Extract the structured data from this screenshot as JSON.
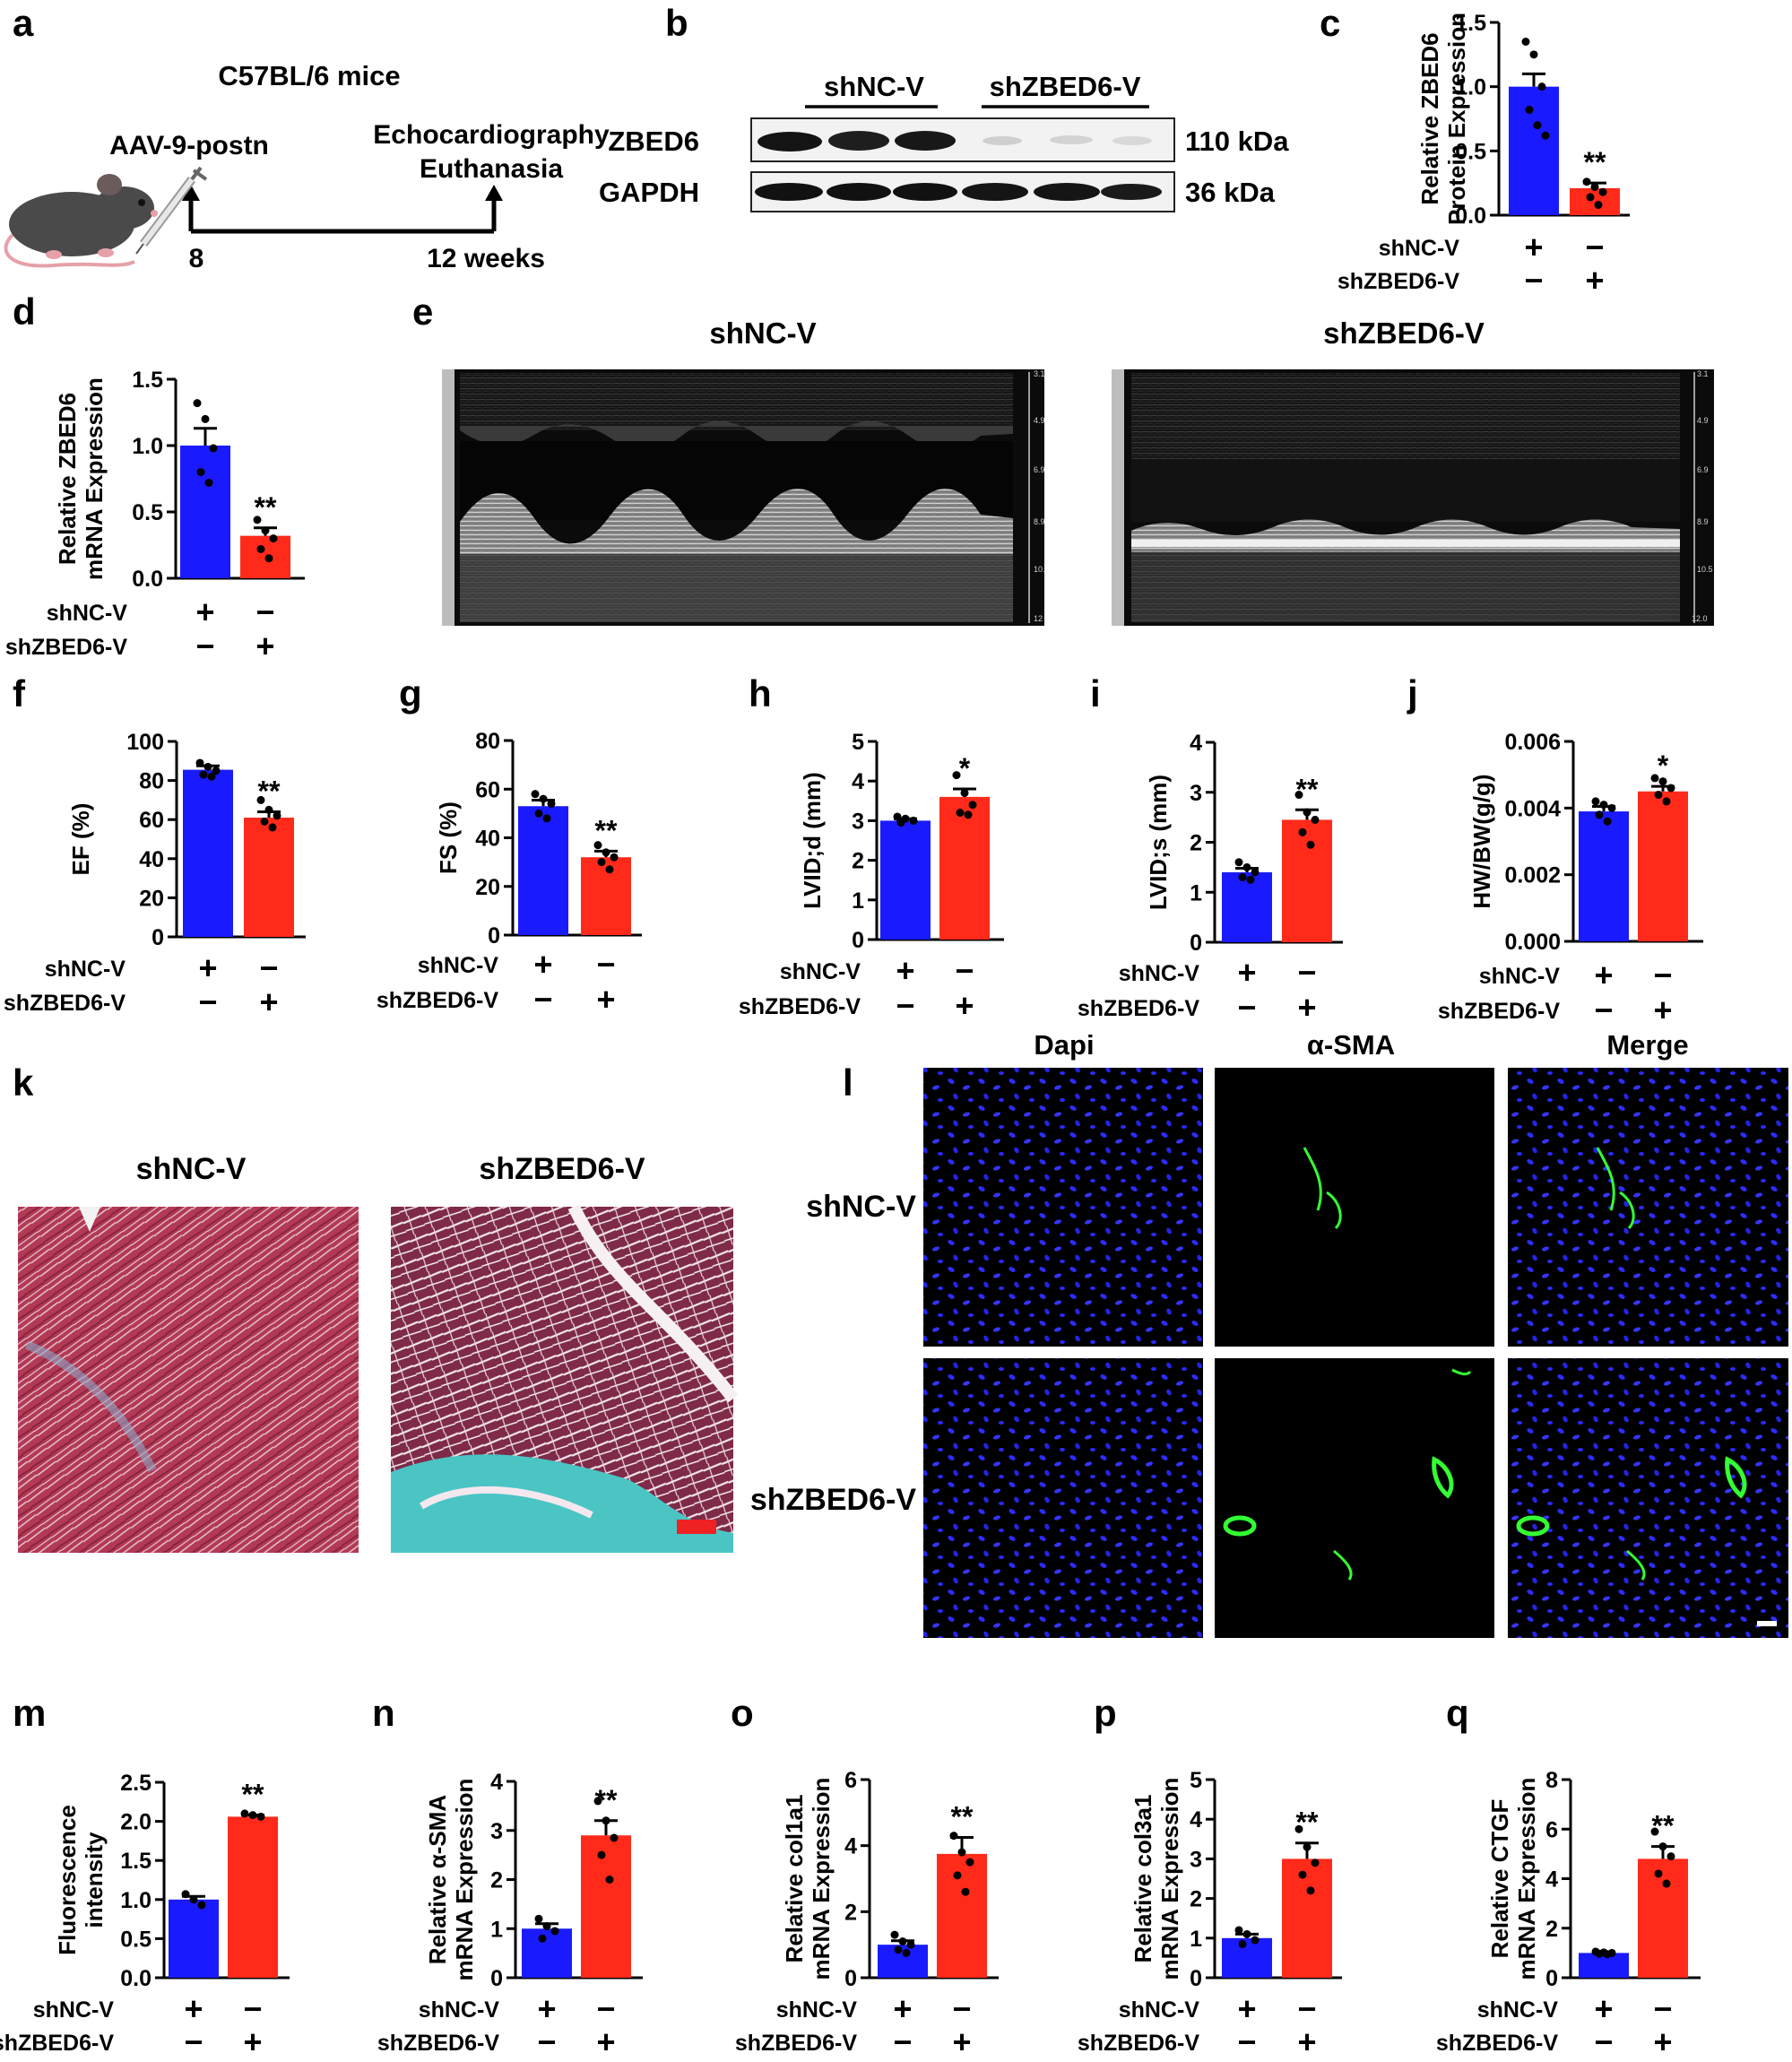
{
  "colors": {
    "control": "#1a1aff",
    "treated": "#ff2a1a",
    "fluor_green": "#33ff33",
    "fluor_blue": "#2222ff",
    "tissue_red": "#b0304a",
    "fibrosis_cyan": "#4bc4c4",
    "scale_red": "#ee2222"
  },
  "groups": {
    "row1": "shNC-V",
    "row2": "shZBED6-V",
    "plus": "+",
    "minus": "−"
  },
  "panels": {
    "a": {
      "letter": "a",
      "title": "C57BL/6 mice",
      "inject": "AAV-9-postn",
      "end_line1": "Echocardiography",
      "end_line2": "Euthanasia",
      "start_week": "8",
      "end_week": "12 weeks",
      "mouse_icon": "mouse-icon",
      "syringe_icon": "syringe-icon"
    },
    "b": {
      "letter": "b",
      "group1": "shNC-V",
      "group2": "shZBED6-V",
      "band1": "ZBED6",
      "band1_kda": "110 kDa",
      "band2": "GAPDH",
      "band2_kda": "36 kDa"
    },
    "e": {
      "letter": "e",
      "left": "shNC-V",
      "right": "shZBED6-V",
      "depth_ticks_left": [
        "3.1",
        "4.9",
        "6.9",
        "8.9",
        "10.",
        "12"
      ],
      "depth_ticks_right": [
        "3.1",
        "4.9",
        "6.9",
        "8.9",
        "10.5",
        "12.0"
      ]
    },
    "k": {
      "letter": "k",
      "left": "shNC-V",
      "right": "shZBED6-V"
    },
    "l": {
      "letter": "l",
      "col1": "Dapi",
      "col2": "α-SMA",
      "col3": "Merge",
      "row1": "shNC-V",
      "row2": "shZBED6-V"
    }
  },
  "chart_data": [
    {
      "id": "c",
      "letter": "c",
      "type": "bar",
      "categories": [
        "shNC-V",
        "shZBED6-V"
      ],
      "values": [
        1.0,
        0.21
      ],
      "errors": [
        0.1,
        0.04
      ],
      "points": [
        [
          1.35,
          1.25,
          1.0,
          0.82,
          0.7,
          0.62
        ],
        [
          0.26,
          0.22,
          0.18,
          0.14,
          0.08
        ]
      ],
      "ylabel": [
        "Relative ZBED6",
        "Protein Expression"
      ],
      "ylim": [
        0,
        1.5
      ],
      "yticks": [
        0,
        0.5,
        1.0,
        1.5
      ],
      "ytick_labels": [
        "0.0",
        "0.5",
        "1.0",
        "1.5"
      ],
      "sig": "**"
    },
    {
      "id": "d",
      "letter": "d",
      "type": "bar",
      "categories": [
        "shNC-V",
        "shZBED6-V"
      ],
      "values": [
        1.0,
        0.32
      ],
      "errors": [
        0.13,
        0.06
      ],
      "points": [
        [
          1.32,
          1.2,
          0.98,
          0.8,
          0.72
        ],
        [
          0.44,
          0.36,
          0.3,
          0.22,
          0.15
        ]
      ],
      "ylabel": [
        "Relative ZBED6",
        "mRNA Expression"
      ],
      "ylim": [
        0,
        1.5
      ],
      "yticks": [
        0,
        0.5,
        1.0,
        1.5
      ],
      "ytick_labels": [
        "0.0",
        "0.5",
        "1.0",
        "1.5"
      ],
      "sig": "**"
    },
    {
      "id": "f",
      "letter": "f",
      "type": "bar",
      "categories": [
        "shNC-V",
        "shZBED6-V"
      ],
      "values": [
        85.5,
        61
      ],
      "errors": [
        2,
        3
      ],
      "points": [
        [
          89,
          87,
          85,
          83,
          82
        ],
        [
          70,
          65,
          62,
          59,
          56
        ]
      ],
      "ylabel": [
        "EF (%)"
      ],
      "ylim": [
        0,
        100
      ],
      "yticks": [
        0,
        20,
        40,
        60,
        80,
        100
      ],
      "ytick_labels": [
        "0",
        "20",
        "40",
        "60",
        "80",
        "100"
      ],
      "sig": "**"
    },
    {
      "id": "g",
      "letter": "g",
      "type": "bar",
      "categories": [
        "shNC-V",
        "shZBED6-V"
      ],
      "values": [
        53,
        32
      ],
      "errors": [
        2.5,
        2.5
      ],
      "points": [
        [
          58,
          56,
          54,
          50,
          48
        ],
        [
          37,
          34,
          32,
          30,
          27
        ]
      ],
      "ylabel": [
        "FS (%)"
      ],
      "ylim": [
        0,
        80
      ],
      "yticks": [
        0,
        20,
        40,
        60,
        80
      ],
      "ytick_labels": [
        "0",
        "20",
        "40",
        "60",
        "80"
      ],
      "sig": "**"
    },
    {
      "id": "h",
      "letter": "h",
      "type": "bar",
      "categories": [
        "shNC-V",
        "shZBED6-V"
      ],
      "values": [
        3.0,
        3.6
      ],
      "errors": [
        0.05,
        0.2
      ],
      "points": [
        [
          3.1,
          3.05,
          3.0,
          2.95
        ],
        [
          4.15,
          3.7,
          3.4,
          3.2,
          3.15
        ]
      ],
      "ylabel": [
        "LVID;d (mm)"
      ],
      "ylim": [
        0,
        5
      ],
      "yticks": [
        0,
        1,
        2,
        3,
        4,
        5
      ],
      "ytick_labels": [
        "0",
        "1",
        "2",
        "3",
        "4",
        "5"
      ],
      "sig": "*"
    },
    {
      "id": "i",
      "letter": "i",
      "type": "bar",
      "categories": [
        "shNC-V",
        "shZBED6-V"
      ],
      "values": [
        1.4,
        2.45
      ],
      "errors": [
        0.08,
        0.2
      ],
      "points": [
        [
          1.6,
          1.5,
          1.4,
          1.3,
          1.25
        ],
        [
          2.95,
          2.6,
          2.45,
          2.2,
          1.95
        ]
      ],
      "ylabel": [
        "LVID;s (mm)"
      ],
      "ylim": [
        0,
        4
      ],
      "yticks": [
        0,
        1,
        2,
        3,
        4
      ],
      "ytick_labels": [
        "0",
        "1",
        "2",
        "3",
        "4"
      ],
      "sig": "**"
    },
    {
      "id": "j",
      "letter": "j",
      "type": "bar",
      "categories": [
        "shNC-V",
        "shZBED6-V"
      ],
      "values": [
        0.0039,
        0.0045
      ],
      "errors": [
        0.00015,
        0.00015
      ],
      "points": [
        [
          0.0042,
          0.0041,
          0.004,
          0.0038,
          0.0036
        ],
        [
          0.0049,
          0.0048,
          0.0046,
          0.0044,
          0.0042
        ]
      ],
      "ylabel": [
        "HW/BW(g/g)"
      ],
      "ylim": [
        0,
        0.006
      ],
      "yticks": [
        0,
        0.002,
        0.004,
        0.006
      ],
      "ytick_labels": [
        "0.000",
        "0.002",
        "0.004",
        "0.006"
      ],
      "sig": "*"
    },
    {
      "id": "m",
      "letter": "m",
      "type": "bar",
      "categories": [
        "shNC-V",
        "shZBED6-V"
      ],
      "values": [
        1.0,
        2.06
      ],
      "errors": [
        0.04,
        0.02
      ],
      "points": [
        [
          1.07,
          1.0,
          0.93
        ],
        [
          2.1,
          2.08,
          2.06
        ]
      ],
      "ylabel": [
        "Fluorescence",
        "intensity"
      ],
      "ylim": [
        0,
        2.5
      ],
      "yticks": [
        0,
        0.5,
        1.0,
        1.5,
        2.0,
        2.5
      ],
      "ytick_labels": [
        "0.0",
        "0.5",
        "1.0",
        "1.5",
        "2.0",
        "2.5"
      ],
      "sig": "**"
    },
    {
      "id": "n",
      "letter": "n",
      "type": "bar",
      "categories": [
        "shNC-V",
        "shZBED6-V"
      ],
      "values": [
        1.0,
        2.9
      ],
      "errors": [
        0.1,
        0.3
      ],
      "points": [
        [
          1.2,
          1.05,
          0.95,
          0.8
        ],
        [
          3.6,
          3.2,
          2.85,
          2.5,
          2.0
        ]
      ],
      "ylabel": [
        "Relative α-SMA",
        "mRNA Expression"
      ],
      "ylim": [
        0,
        4
      ],
      "yticks": [
        0,
        1,
        2,
        3,
        4
      ],
      "ytick_labels": [
        "0",
        "1",
        "2",
        "3",
        "4"
      ],
      "sig": "**"
    },
    {
      "id": "o",
      "letter": "o",
      "type": "bar",
      "categories": [
        "shNC-V",
        "shZBED6-V"
      ],
      "values": [
        1.0,
        3.75
      ],
      "errors": [
        0.12,
        0.5
      ],
      "points": [
        [
          1.3,
          1.1,
          1.0,
          0.85,
          0.75
        ],
        [
          4.3,
          3.8,
          3.5,
          3.1,
          2.6
        ]
      ],
      "ylabel": [
        "Relative col1a1",
        "mRNA Expression"
      ],
      "ylim": [
        0,
        6
      ],
      "yticks": [
        0,
        2,
        4,
        6
      ],
      "ytick_labels": [
        "0",
        "2",
        "4",
        "6"
      ],
      "sig": "**"
    },
    {
      "id": "p",
      "letter": "p",
      "type": "bar",
      "categories": [
        "shNC-V",
        "shZBED6-V"
      ],
      "values": [
        1.0,
        3.0
      ],
      "errors": [
        0.1,
        0.4
      ],
      "points": [
        [
          1.2,
          1.1,
          0.95,
          0.85
        ],
        [
          3.75,
          3.3,
          2.9,
          2.6,
          2.2
        ]
      ],
      "ylabel": [
        "Relative col3a1",
        "mRNA Expression"
      ],
      "ylim": [
        0,
        5
      ],
      "yticks": [
        0,
        1,
        2,
        3,
        4,
        5
      ],
      "ytick_labels": [
        "0",
        "1",
        "2",
        "3",
        "4",
        "5"
      ],
      "sig": "**"
    },
    {
      "id": "q",
      "letter": "q",
      "type": "bar",
      "categories": [
        "shNC-V",
        "shZBED6-V"
      ],
      "values": [
        1.0,
        4.8
      ],
      "errors": [
        0.05,
        0.5
      ],
      "points": [
        [
          1.05,
          1.02,
          1.0,
          0.97,
          0.95
        ],
        [
          5.9,
          5.3,
          4.9,
          4.2,
          3.8
        ]
      ],
      "ylabel": [
        "Relative CTGF",
        "mRNA Expression"
      ],
      "ylim": [
        0,
        8
      ],
      "yticks": [
        0,
        2,
        4,
        6,
        8
      ],
      "ytick_labels": [
        "0",
        "2",
        "4",
        "6",
        "8"
      ],
      "sig": "**"
    }
  ]
}
